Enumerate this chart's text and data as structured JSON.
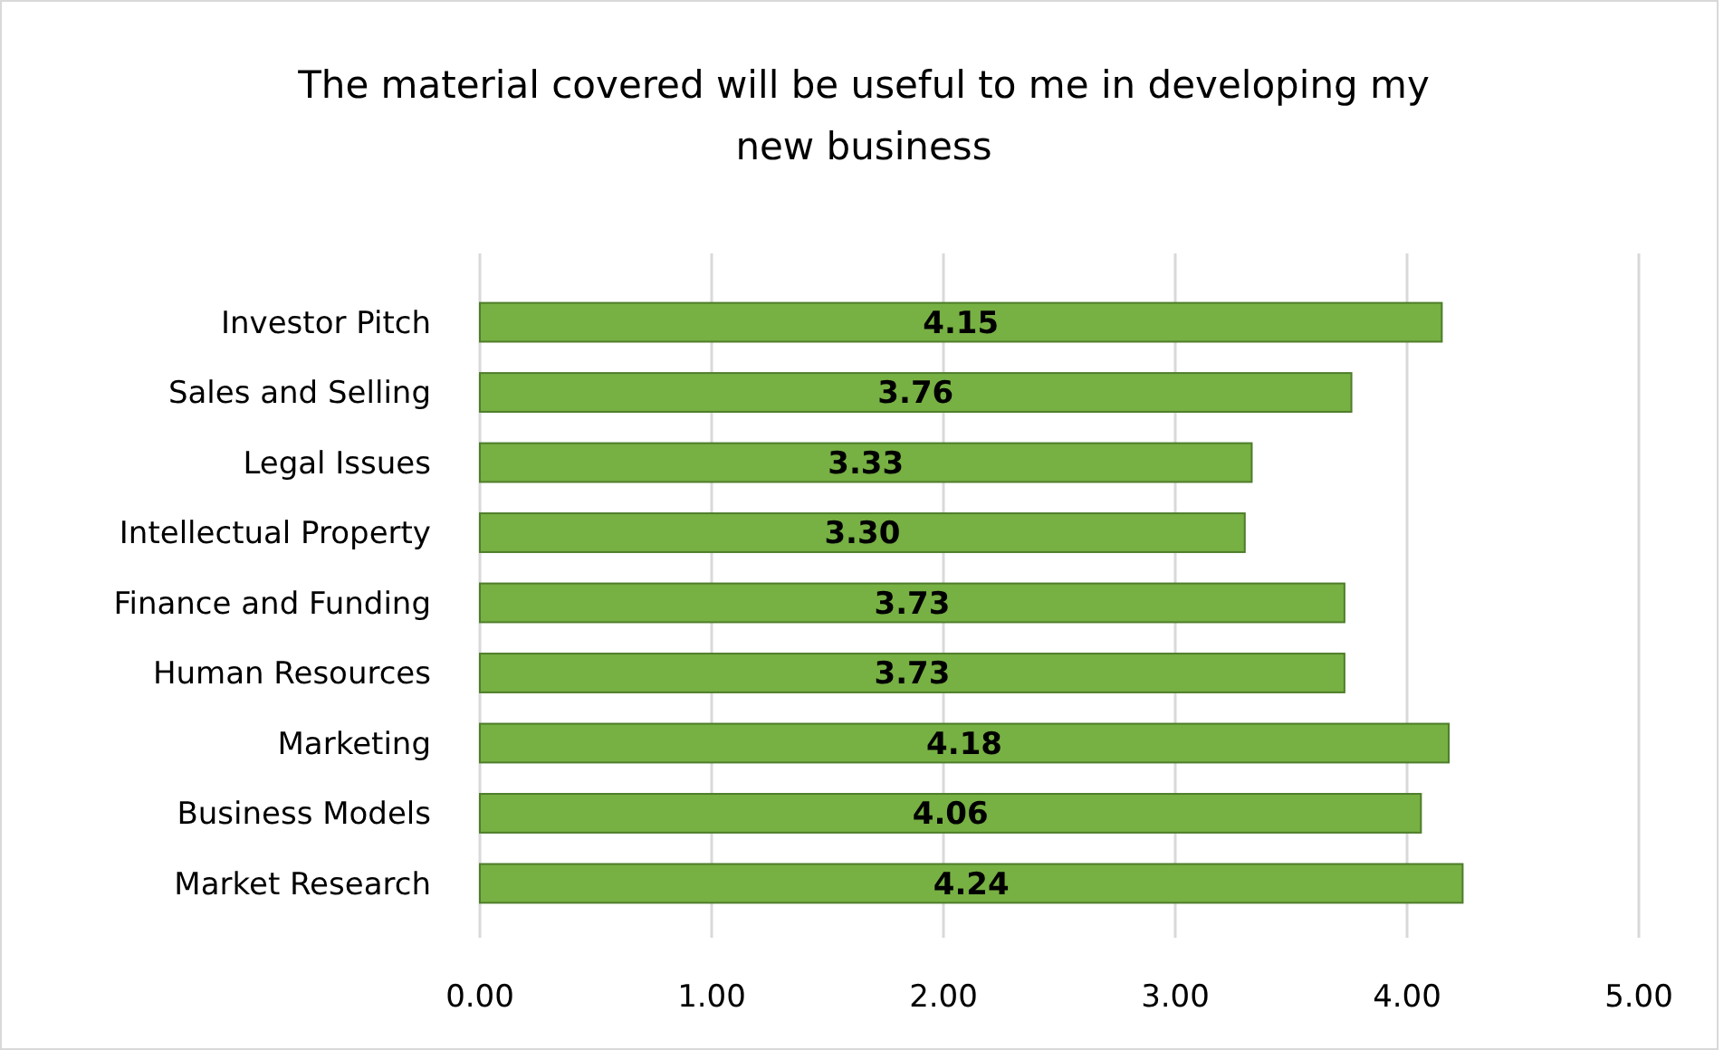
{
  "chart_data": {
    "type": "bar",
    "orientation": "horizontal",
    "title": "The material covered will be useful to me in developing my new business",
    "categories": [
      "Investor Pitch",
      "Sales and Selling",
      "Legal Issues",
      "Intellectual Property",
      "Finance and Funding",
      "Human Resources",
      "Marketing",
      "Business Models",
      "Market Research"
    ],
    "values": [
      4.15,
      3.76,
      3.33,
      3.3,
      3.73,
      3.73,
      4.18,
      4.06,
      4.24
    ],
    "value_labels": [
      "4.15",
      "3.76",
      "3.33",
      "3.30",
      "3.73",
      "3.73",
      "4.18",
      "4.06",
      "4.24"
    ],
    "color": "#77b043",
    "xlim": [
      0,
      5
    ],
    "xticks": [
      {
        "value": 0,
        "label": "0.00"
      },
      {
        "value": 1,
        "label": "1.00"
      },
      {
        "value": 2,
        "label": "2.00"
      },
      {
        "value": 3,
        "label": "3.00"
      },
      {
        "value": 4,
        "label": "4.00"
      },
      {
        "value": 5,
        "label": "5.00"
      }
    ],
    "grid": "x"
  }
}
